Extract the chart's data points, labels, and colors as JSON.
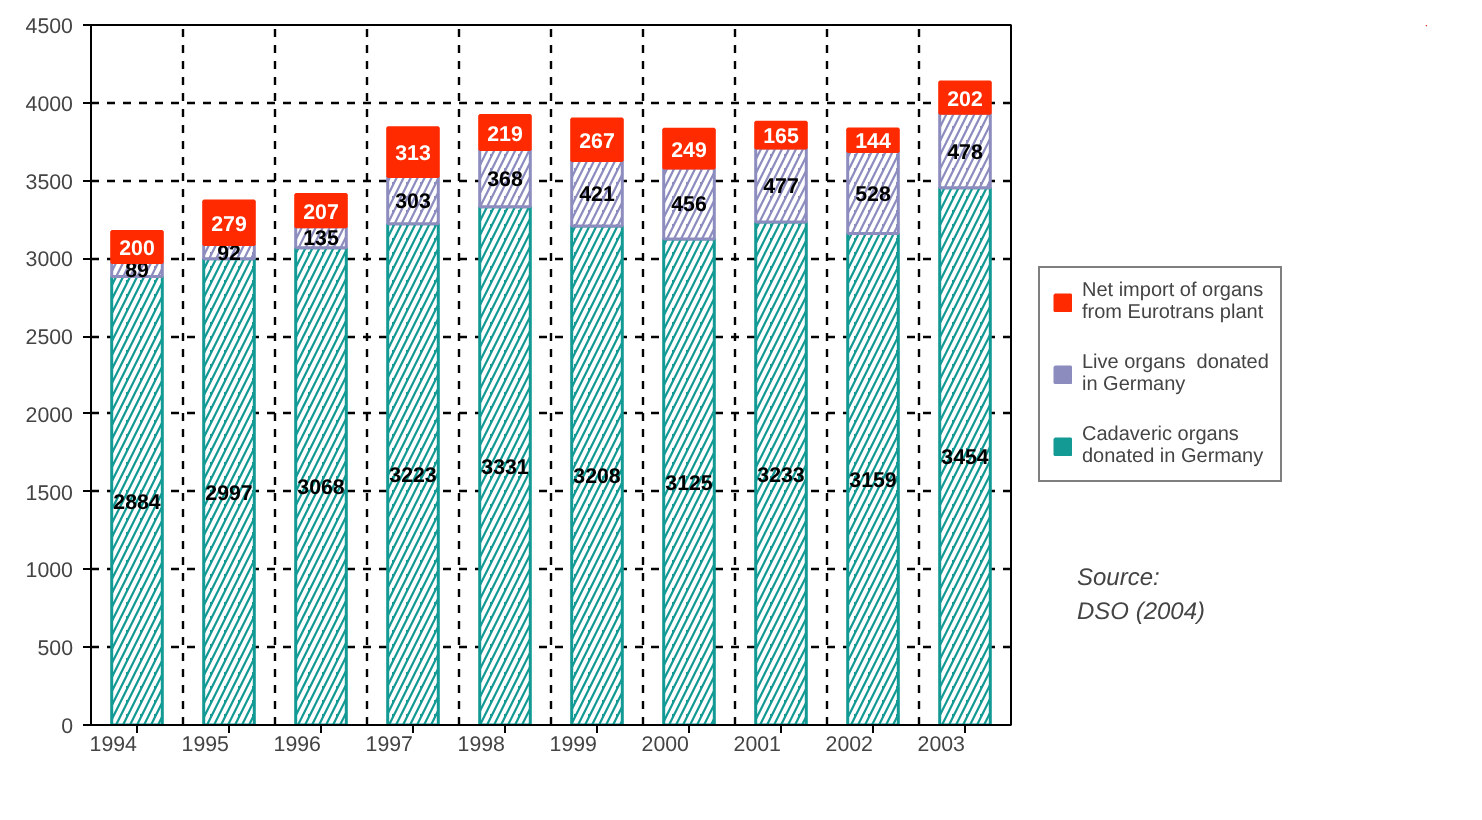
{
  "chart_data": {
    "type": "bar",
    "stacked": true,
    "categories": [
      "1994",
      "1995",
      "1996",
      "1997",
      "1998",
      "1999",
      "2000",
      "2001",
      "2002",
      "2003"
    ],
    "series": [
      {
        "name": "Cadaveric organs donated in Germany",
        "color": "#139a94",
        "values": [
          2884,
          2997,
          3068,
          3223,
          3331,
          3208,
          3125,
          3233,
          3159,
          3454
        ]
      },
      {
        "name": "Live organs  donated in Germany",
        "color": "#8c8cbf",
        "values": [
          89,
          92,
          135,
          303,
          368,
          421,
          456,
          477,
          528,
          478
        ]
      },
      {
        "name": "Net import of organs from Eurotrans plant",
        "color": "#ff2a00",
        "values": [
          200,
          279,
          207,
          313,
          219,
          267,
          249,
          165,
          144,
          202
        ]
      }
    ],
    "ylim": [
      0,
      4500
    ],
    "yticks": [
      0,
      500,
      1000,
      1500,
      2000,
      2500,
      3000,
      3500,
      4000,
      4500
    ],
    "grid": true,
    "legend": "right",
    "data_labels": true,
    "annotations": [
      "Source:\nDSO (2004)"
    ]
  }
}
